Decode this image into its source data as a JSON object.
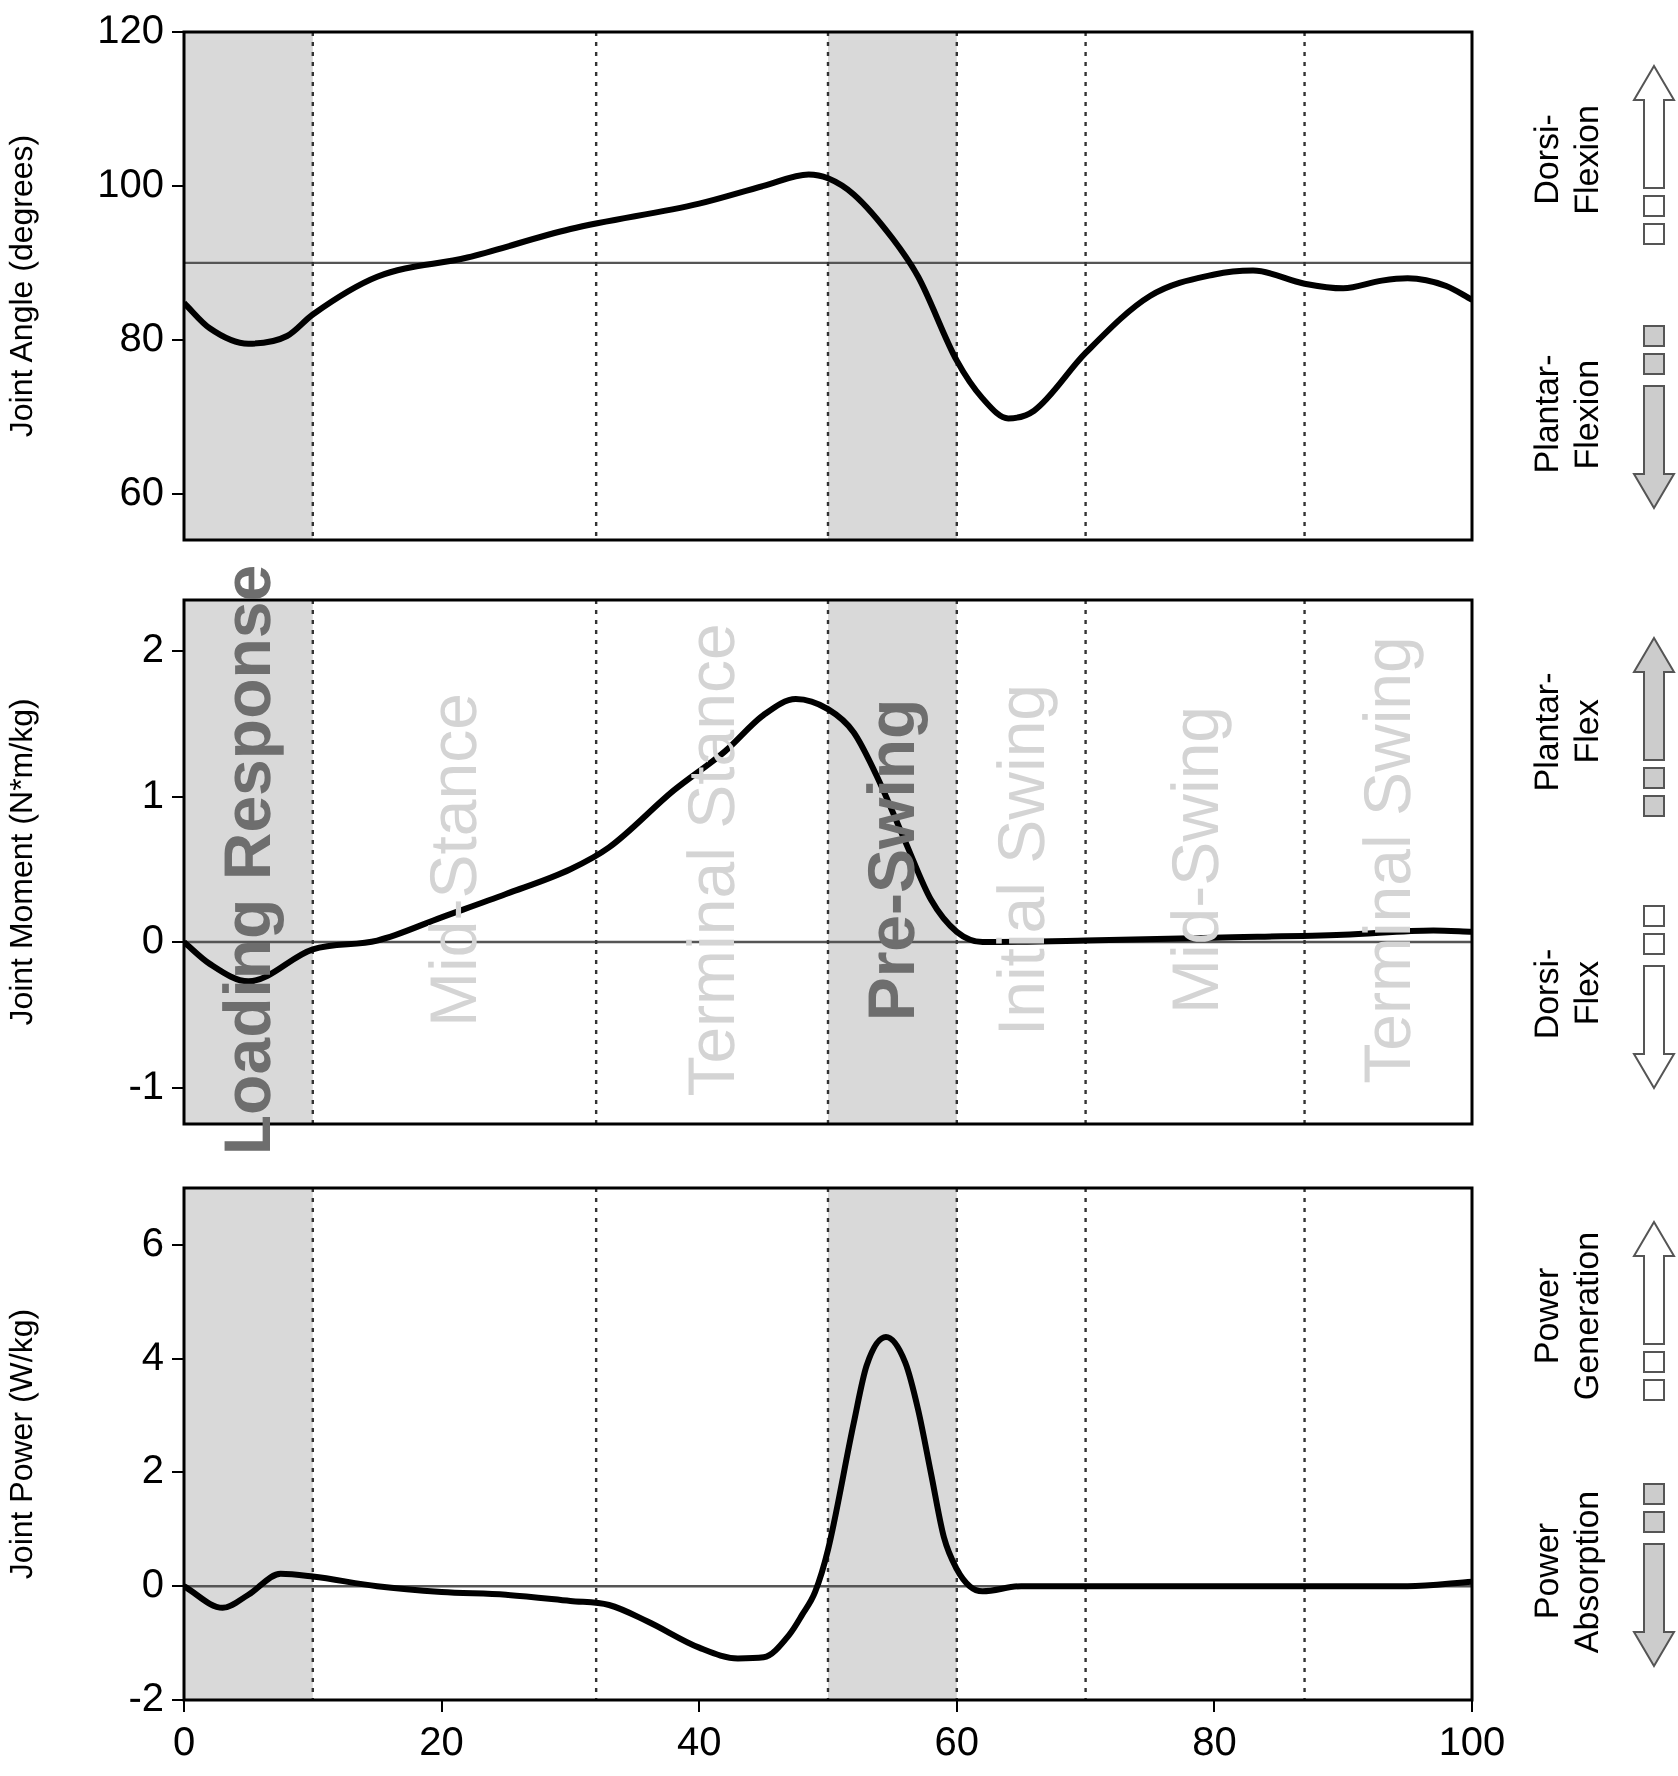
{
  "chart_data": [
    {
      "type": "line",
      "ylabel": "Joint Angle (degrees)",
      "xlim": [
        0,
        100
      ],
      "xticks": [
        0,
        20,
        40,
        60,
        80,
        100
      ],
      "ylim": [
        54,
        120
      ],
      "yticks": [
        60,
        80,
        100,
        120
      ],
      "tick_labels": "y",
      "grid": false,
      "legend": false,
      "line_style": "solid",
      "x": [
        0,
        2,
        5,
        8,
        10,
        15,
        22,
        30,
        40,
        45,
        48.5,
        50,
        52,
        55,
        57,
        60,
        62,
        64,
        66,
        70,
        75,
        80,
        83,
        87,
        90,
        93,
        95,
        98,
        100
      ],
      "series": [
        {
          "color": "#000000",
          "values": [
            84.8,
            81.5,
            79.5,
            80.5,
            83.3,
            88.2,
            90.7,
            94.4,
            97.7,
            100,
            101.5,
            101,
            98.9,
            93.2,
            88.2,
            77.3,
            72.4,
            69.8,
            70.8,
            78.3,
            85.7,
            88.5,
            89,
            87.3,
            86.7,
            87.7,
            88,
            87,
            85.2
          ]
        }
      ],
      "bands": [
        {
          "axis": "x",
          "from": 0,
          "to": 10,
          "label": "Loading Response",
          "color": "#d9d9d9"
        },
        {
          "axis": "x",
          "from": 50,
          "to": 60,
          "label": "Pre-Swing",
          "color": "#d9d9d9"
        }
      ],
      "ref_lines": [
        {
          "axis": "y",
          "value": 90,
          "color": "#555555"
        },
        {
          "axis": "x",
          "value": 10,
          "line_style": "dotted",
          "color": "#333333"
        },
        {
          "axis": "x",
          "value": 32,
          "line_style": "dotted",
          "color": "#333333"
        },
        {
          "axis": "x",
          "value": 50,
          "line_style": "dotted",
          "color": "#333333"
        },
        {
          "axis": "x",
          "value": 60,
          "line_style": "dotted",
          "color": "#333333"
        },
        {
          "axis": "x",
          "value": 70,
          "line_style": "dotted",
          "color": "#333333"
        },
        {
          "axis": "x",
          "value": 87,
          "line_style": "dotted",
          "color": "#333333"
        }
      ],
      "annotations": [
        "Dorsi-\nFlexion",
        "Plantar-\nFlexion",
        "Mid-Stance",
        "Terminal Stance",
        "Initial Swing",
        "Mid-Swing",
        "Terminal Swing"
      ]
    },
    {
      "type": "line",
      "ylabel": "Joint Moment (N*m/kg)",
      "xlim": [
        0,
        100
      ],
      "xticks": [
        0,
        20,
        40,
        60,
        80,
        100
      ],
      "ylim": [
        -1.25,
        2.35
      ],
      "yticks": [
        -1,
        0,
        1,
        2
      ],
      "tick_labels": "y",
      "grid": false,
      "legend": false,
      "line_style": "solid",
      "x": [
        0,
        2,
        5,
        10,
        15,
        20,
        25,
        30,
        33,
        38,
        42,
        45,
        47.5,
        50,
        52,
        54,
        56,
        58,
        60,
        62,
        70,
        80,
        90,
        97,
        100
      ],
      "series": [
        {
          "color": "#000000",
          "values": [
            0,
            -0.15,
            -0.27,
            -0.05,
            0.01,
            0.17,
            0.33,
            0.5,
            0.65,
            1.04,
            1.31,
            1.56,
            1.67,
            1.6,
            1.44,
            1.1,
            0.69,
            0.29,
            0.07,
            0,
            0.01,
            0.03,
            0.05,
            0.08,
            0.07
          ]
        }
      ],
      "bands": [
        {
          "axis": "x",
          "from": 0,
          "to": 10,
          "color": "#d9d9d9"
        },
        {
          "axis": "x",
          "from": 50,
          "to": 60,
          "color": "#d9d9d9"
        }
      ],
      "ref_lines": [
        {
          "axis": "y",
          "value": 0,
          "color": "#555555"
        },
        {
          "axis": "x",
          "value": 10,
          "line_style": "dotted",
          "color": "#333333"
        },
        {
          "axis": "x",
          "value": 32,
          "line_style": "dotted",
          "color": "#333333"
        },
        {
          "axis": "x",
          "value": 50,
          "line_style": "dotted",
          "color": "#333333"
        },
        {
          "axis": "x",
          "value": 60,
          "line_style": "dotted",
          "color": "#333333"
        },
        {
          "axis": "x",
          "value": 70,
          "line_style": "dotted",
          "color": "#333333"
        },
        {
          "axis": "x",
          "value": 87,
          "line_style": "dotted",
          "color": "#333333"
        }
      ],
      "annotations": [
        "Plantar-\nFlex",
        "Dorsi-\nFlex"
      ]
    },
    {
      "type": "line",
      "ylabel": "Joint Power (W/kg)",
      "xlim": [
        0,
        100
      ],
      "xticks": [
        0,
        20,
        40,
        60,
        80,
        100
      ],
      "ylim": [
        -2,
        7
      ],
      "yticks": [
        -2,
        0,
        2,
        4,
        6
      ],
      "grid": false,
      "legend": false,
      "line_style": "solid",
      "x": [
        0,
        3,
        5,
        7.5,
        10,
        15,
        20,
        25,
        30,
        33,
        36,
        40,
        43,
        45,
        47,
        48,
        49,
        50,
        52,
        53,
        54.5,
        56,
        57,
        58,
        59,
        60,
        61,
        62,
        65,
        80,
        95,
        100
      ],
      "series": [
        {
          "color": "#000000",
          "values": [
            0,
            -0.38,
            -0.15,
            0.22,
            0.17,
            0,
            -0.1,
            -0.15,
            -0.26,
            -0.33,
            -0.62,
            -1.08,
            -1.27,
            -1.25,
            -0.85,
            -0.5,
            -0.1,
            0.64,
            2.87,
            3.88,
            4.38,
            3.93,
            3.1,
            1.98,
            0.86,
            0.3,
            0,
            -0.09,
            0,
            0,
            0,
            0.08
          ]
        }
      ],
      "bands": [
        {
          "axis": "x",
          "from": 0,
          "to": 10,
          "color": "#d9d9d9"
        },
        {
          "axis": "x",
          "from": 50,
          "to": 60,
          "color": "#d9d9d9"
        }
      ],
      "ref_lines": [
        {
          "axis": "y",
          "value": 0,
          "color": "#555555"
        },
        {
          "axis": "x",
          "value": 10,
          "line_style": "dotted",
          "color": "#333333"
        },
        {
          "axis": "x",
          "value": 32,
          "line_style": "dotted",
          "color": "#333333"
        },
        {
          "axis": "x",
          "value": 50,
          "line_style": "dotted",
          "color": "#333333"
        },
        {
          "axis": "x",
          "value": 60,
          "line_style": "dotted",
          "color": "#333333"
        },
        {
          "axis": "x",
          "value": 70,
          "line_style": "dotted",
          "color": "#333333"
        },
        {
          "axis": "x",
          "value": 87,
          "line_style": "dotted",
          "color": "#333333"
        }
      ],
      "annotations": [
        "Power\nGeneration",
        "Power\nAbsorption"
      ]
    }
  ]
}
